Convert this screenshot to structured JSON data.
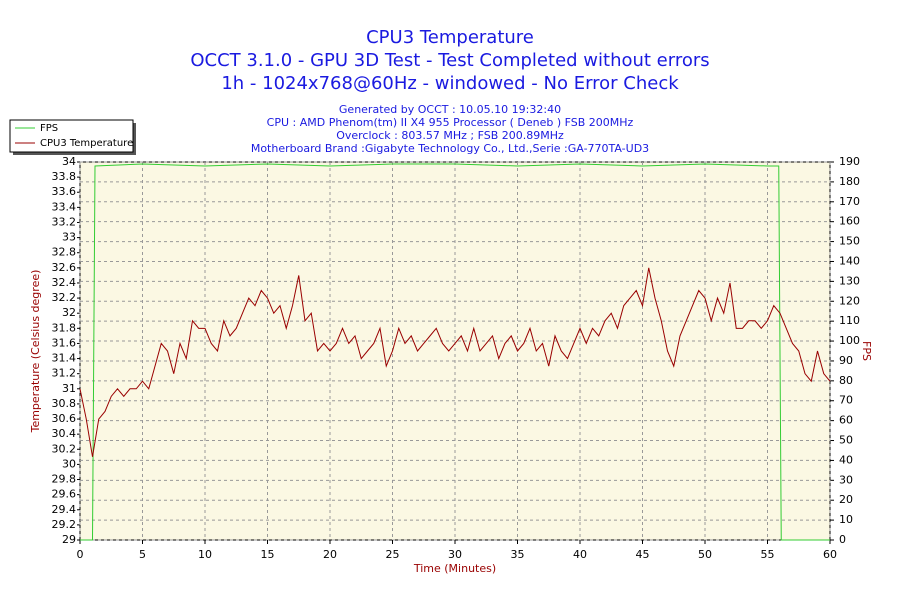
{
  "chart_data": {
    "type": "line",
    "title": "CPU3 Temperature",
    "title_lines": [
      "OCCT 3.1.0 - GPU 3D Test - Test Completed without errors",
      "1h - 1024x768@60Hz - windowed - No Error Check"
    ],
    "subtitle_lines": [
      "Generated by OCCT : 10.05.10 19:32:40",
      "CPU : AMD Phenom(tm) II X4 955 Processor ( Deneb ) FSB 200MHz",
      "Overclock : 803.57 MHz ; FSB 200.89MHz",
      "Motherboard Brand :Gigabyte Technology Co., Ltd.,Serie :GA-770TA-UD3"
    ],
    "x_label": "Time (Minutes)",
    "y_label": "Temperature (Celsius degree)",
    "y2_label": "FPS",
    "x": [
      0,
      0.5,
      1,
      1.5,
      2,
      2.5,
      3,
      3.5,
      4,
      4.5,
      5,
      5.5,
      6,
      6.5,
      7,
      7.5,
      8,
      8.5,
      9,
      9.5,
      10,
      10.5,
      11,
      11.5,
      12,
      12.5,
      13,
      13.5,
      14,
      14.5,
      15,
      15.5,
      16,
      16.5,
      17,
      17.5,
      18,
      18.5,
      19,
      19.5,
      20,
      20.5,
      21,
      21.5,
      22,
      22.5,
      23,
      23.5,
      24,
      24.5,
      25,
      25.5,
      26,
      26.5,
      27,
      27.5,
      28,
      28.5,
      29,
      29.5,
      30,
      30.5,
      31,
      31.5,
      32,
      32.5,
      33,
      33.5,
      34,
      34.5,
      35,
      35.5,
      36,
      36.5,
      37,
      37.5,
      38,
      38.5,
      39,
      39.5,
      40,
      40.5,
      41,
      41.5,
      42,
      42.5,
      43,
      43.5,
      44,
      44.5,
      45,
      45.5,
      46,
      46.5,
      47,
      47.5,
      48,
      48.5,
      49,
      49.5,
      50,
      50.5,
      51,
      51.5,
      52,
      52.5,
      53,
      53.5,
      54,
      54.5,
      55,
      55.5,
      56,
      56.5,
      57,
      57.5,
      58,
      58.5,
      59,
      59.5,
      60
    ],
    "series": [
      {
        "name": "FPS",
        "color": "#33cc33",
        "axis": "y2",
        "x": [
          0,
          1,
          1.2,
          5,
          10,
          15,
          20,
          25,
          30,
          35,
          40,
          45,
          50,
          55,
          55.9,
          56.1,
          60
        ],
        "values": [
          0,
          0,
          188,
          189,
          188,
          189,
          188,
          189,
          189,
          188,
          189,
          188,
          189,
          188,
          188,
          0,
          0
        ]
      },
      {
        "name": "CPU3 Temperature",
        "color": "#990000",
        "values": [
          31.0,
          30.6,
          30.1,
          30.6,
          30.7,
          30.9,
          31.0,
          30.9,
          31.0,
          31.0,
          31.1,
          31.0,
          31.3,
          31.6,
          31.5,
          31.2,
          31.6,
          31.4,
          31.9,
          31.8,
          31.8,
          31.6,
          31.5,
          31.9,
          31.7,
          31.8,
          32.0,
          32.2,
          32.1,
          32.3,
          32.2,
          32.0,
          32.1,
          31.8,
          32.1,
          32.5,
          31.9,
          32.0,
          31.5,
          31.6,
          31.5,
          31.6,
          31.8,
          31.6,
          31.7,
          31.4,
          31.5,
          31.6,
          31.8,
          31.3,
          31.5,
          31.8,
          31.6,
          31.7,
          31.5,
          31.6,
          31.7,
          31.8,
          31.6,
          31.5,
          31.6,
          31.7,
          31.5,
          31.8,
          31.5,
          31.6,
          31.7,
          31.4,
          31.6,
          31.7,
          31.5,
          31.6,
          31.8,
          31.5,
          31.6,
          31.3,
          31.7,
          31.5,
          31.4,
          31.6,
          31.8,
          31.6,
          31.8,
          31.7,
          31.9,
          32.0,
          31.8,
          32.1,
          32.2,
          32.3,
          32.1,
          32.6,
          32.2,
          31.9,
          31.5,
          31.3,
          31.7,
          31.9,
          32.1,
          32.3,
          32.2,
          31.9,
          32.2,
          32.0,
          32.4,
          31.8,
          31.8,
          31.9,
          31.9,
          31.8,
          31.9,
          32.1,
          32.0,
          31.8,
          31.6,
          31.5,
          31.2,
          31.1,
          31.5,
          31.2,
          31.1
        ]
      }
    ],
    "xlim": [
      0,
      60
    ],
    "xticks": [
      0,
      5,
      10,
      15,
      20,
      25,
      30,
      35,
      40,
      45,
      50,
      55,
      60
    ],
    "ylim": [
      29,
      34
    ],
    "yticks": [
      29,
      29.2,
      29.4,
      29.6,
      29.8,
      30,
      30.2,
      30.4,
      30.6,
      30.8,
      31,
      31.2,
      31.4,
      31.6,
      31.8,
      32,
      32.2,
      32.4,
      32.6,
      32.8,
      33,
      33.2,
      33.4,
      33.6,
      33.8,
      34
    ],
    "y2lim": [
      0,
      190
    ],
    "y2ticks": [
      0,
      10,
      20,
      30,
      40,
      50,
      60,
      70,
      80,
      90,
      100,
      110,
      120,
      130,
      140,
      150,
      160,
      170,
      180,
      190
    ],
    "grid": true
  }
}
